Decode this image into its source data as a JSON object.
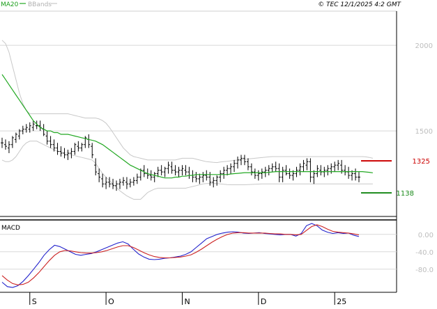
{
  "chart_data": [
    {
      "type": "line",
      "panel": "price",
      "legend": {
        "ma_label": "MA20",
        "bb_label": "BBands",
        "ma_color": "#22a822",
        "bb_color": "#c8c8c8"
      },
      "copyright": "© TEC 12/1/2025 4:2 GMT",
      "y_ticks": [
        {
          "value": 2000,
          "label": "2000"
        },
        {
          "value": 1500,
          "label": "1500"
        }
      ],
      "ylim": [
        1000,
        2200
      ],
      "x_ticks": [
        "S",
        "O",
        "N",
        "D",
        "25"
      ],
      "x_tick_index": [
        8,
        30,
        52,
        74,
        96
      ],
      "bar_color": "#000000",
      "levels": [
        {
          "label": "1325",
          "value": 1325,
          "color": "#cc0000"
        },
        {
          "label": "1138",
          "value": 1138,
          "color": "#1a8a1a"
        }
      ],
      "ohlc": [
        [
          1430,
          1460,
          1400,
          1430
        ],
        [
          1420,
          1450,
          1390,
          1410
        ],
        [
          1400,
          1440,
          1370,
          1420
        ],
        [
          1420,
          1470,
          1400,
          1460
        ],
        [
          1450,
          1490,
          1430,
          1480
        ],
        [
          1470,
          1510,
          1450,
          1500
        ],
        [
          1500,
          1530,
          1480,
          1510
        ],
        [
          1510,
          1540,
          1490,
          1520
        ],
        [
          1510,
          1550,
          1490,
          1530
        ],
        [
          1520,
          1560,
          1500,
          1540
        ],
        [
          1530,
          1560,
          1510,
          1530
        ],
        [
          1530,
          1560,
          1500,
          1520
        ],
        [
          1510,
          1540,
          1470,
          1480
        ],
        [
          1470,
          1500,
          1420,
          1440
        ],
        [
          1440,
          1470,
          1400,
          1420
        ],
        [
          1420,
          1450,
          1380,
          1400
        ],
        [
          1400,
          1430,
          1360,
          1380
        ],
        [
          1380,
          1410,
          1350,
          1370
        ],
        [
          1370,
          1400,
          1340,
          1360
        ],
        [
          1360,
          1390,
          1330,
          1370
        ],
        [
          1370,
          1400,
          1340,
          1380
        ],
        [
          1380,
          1430,
          1360,
          1420
        ],
        [
          1410,
          1440,
          1380,
          1400
        ],
        [
          1400,
          1430,
          1380,
          1420
        ],
        [
          1420,
          1470,
          1400,
          1460
        ],
        [
          1450,
          1480,
          1400,
          1420
        ],
        [
          1410,
          1430,
          1340,
          1360
        ],
        [
          1300,
          1340,
          1240,
          1260
        ],
        [
          1250,
          1280,
          1200,
          1230
        ],
        [
          1220,
          1250,
          1170,
          1190
        ],
        [
          1190,
          1230,
          1160,
          1200
        ],
        [
          1200,
          1230,
          1170,
          1190
        ],
        [
          1190,
          1220,
          1160,
          1180
        ],
        [
          1180,
          1210,
          1150,
          1190
        ],
        [
          1190,
          1220,
          1160,
          1200
        ],
        [
          1200,
          1230,
          1180,
          1210
        ],
        [
          1200,
          1230,
          1160,
          1190
        ],
        [
          1190,
          1220,
          1170,
          1200
        ],
        [
          1200,
          1230,
          1180,
          1210
        ],
        [
          1210,
          1250,
          1190,
          1230
        ],
        [
          1230,
          1280,
          1210,
          1270
        ],
        [
          1270,
          1300,
          1230,
          1250
        ],
        [
          1250,
          1280,
          1220,
          1240
        ],
        [
          1240,
          1270,
          1210,
          1230
        ],
        [
          1230,
          1260,
          1200,
          1250
        ],
        [
          1250,
          1290,
          1230,
          1270
        ],
        [
          1270,
          1300,
          1240,
          1260
        ],
        [
          1260,
          1290,
          1230,
          1280
        ],
        [
          1280,
          1320,
          1250,
          1300
        ],
        [
          1290,
          1320,
          1250,
          1270
        ],
        [
          1270,
          1300,
          1240,
          1260
        ],
        [
          1260,
          1290,
          1230,
          1270
        ],
        [
          1270,
          1300,
          1240,
          1280
        ],
        [
          1270,
          1300,
          1240,
          1260
        ],
        [
          1260,
          1290,
          1220,
          1240
        ],
        [
          1240,
          1270,
          1200,
          1230
        ],
        [
          1230,
          1260,
          1200,
          1220
        ],
        [
          1220,
          1250,
          1190,
          1230
        ],
        [
          1230,
          1260,
          1200,
          1240
        ],
        [
          1240,
          1270,
          1210,
          1230
        ],
        [
          1230,
          1260,
          1180,
          1200
        ],
        [
          1200,
          1230,
          1170,
          1210
        ],
        [
          1210,
          1240,
          1180,
          1230
        ],
        [
          1230,
          1270,
          1200,
          1250
        ],
        [
          1250,
          1290,
          1220,
          1270
        ],
        [
          1270,
          1300,
          1240,
          1280
        ],
        [
          1280,
          1310,
          1250,
          1290
        ],
        [
          1290,
          1330,
          1260,
          1310
        ],
        [
          1310,
          1350,
          1280,
          1330
        ],
        [
          1330,
          1360,
          1300,
          1340
        ],
        [
          1340,
          1360,
          1300,
          1320
        ],
        [
          1320,
          1340,
          1270,
          1290
        ],
        [
          1290,
          1310,
          1240,
          1260
        ],
        [
          1260,
          1280,
          1220,
          1240
        ],
        [
          1240,
          1270,
          1210,
          1250
        ],
        [
          1250,
          1280,
          1220,
          1260
        ],
        [
          1260,
          1290,
          1230,
          1270
        ],
        [
          1270,
          1300,
          1240,
          1280
        ],
        [
          1280,
          1310,
          1260,
          1290
        ],
        [
          1290,
          1320,
          1260,
          1280
        ],
        [
          1280,
          1310,
          1200,
          1230
        ],
        [
          1230,
          1290,
          1200,
          1270
        ],
        [
          1270,
          1300,
          1240,
          1250
        ],
        [
          1250,
          1280,
          1220,
          1240
        ],
        [
          1240,
          1270,
          1210,
          1250
        ],
        [
          1250,
          1290,
          1230,
          1270
        ],
        [
          1270,
          1310,
          1240,
          1290
        ],
        [
          1290,
          1330,
          1260,
          1310
        ],
        [
          1300,
          1340,
          1270,
          1320
        ],
        [
          1320,
          1340,
          1200,
          1230
        ],
        [
          1230,
          1270,
          1190,
          1250
        ],
        [
          1250,
          1300,
          1230,
          1280
        ],
        [
          1270,
          1300,
          1240,
          1260
        ],
        [
          1260,
          1290,
          1230,
          1270
        ],
        [
          1270,
          1300,
          1240,
          1280
        ],
        [
          1280,
          1310,
          1250,
          1290
        ],
        [
          1290,
          1320,
          1260,
          1300
        ],
        [
          1300,
          1330,
          1270,
          1310
        ],
        [
          1300,
          1330,
          1250,
          1270
        ],
        [
          1270,
          1300,
          1240,
          1260
        ],
        [
          1260,
          1290,
          1220,
          1240
        ],
        [
          1240,
          1270,
          1210,
          1250
        ],
        [
          1250,
          1280,
          1210,
          1230
        ],
        [
          1230,
          1260,
          1200,
          1230
        ]
      ],
      "ma20": [
        1830,
        1800,
        1770,
        1740,
        1710,
        1680,
        1650,
        1620,
        1590,
        1560,
        1540,
        1520,
        1510,
        1500,
        1500,
        1490,
        1490,
        1480,
        1480,
        1480,
        1475,
        1470,
        1465,
        1460,
        1455,
        1450,
        1445,
        1440,
        1430,
        1420,
        1405,
        1390,
        1375,
        1360,
        1345,
        1330,
        1315,
        1300,
        1290,
        1280,
        1270,
        1260,
        1250,
        1245,
        1240,
        1235,
        1230,
        1225,
        1225,
        1225,
        1230,
        1230,
        1235,
        1235,
        1240,
        1240,
        1245,
        1245,
        1245,
        1245,
        1245,
        1245,
        1245,
        1245,
        1245,
        1245,
        1248,
        1250,
        1252,
        1254,
        1256,
        1256,
        1256,
        1256,
        1256,
        1256,
        1256,
        1258,
        1260,
        1262,
        1262,
        1262,
        1262,
        1262,
        1262,
        1262,
        1262,
        1262,
        1262,
        1262,
        1262,
        1262,
        1262,
        1262,
        1262,
        1262,
        1262,
        1262,
        1262,
        1262,
        1262,
        1262,
        1262,
        1262,
        1262,
        1260,
        1258,
        1255
      ],
      "bb_upper": [
        2030,
        2010,
        1960,
        1880,
        1800,
        1720,
        1660,
        1620,
        1600,
        1600,
        1600,
        1600,
        1600,
        1600,
        1600,
        1600,
        1600,
        1600,
        1600,
        1600,
        1595,
        1590,
        1585,
        1580,
        1575,
        1575,
        1575,
        1575,
        1570,
        1560,
        1545,
        1520,
        1490,
        1460,
        1430,
        1400,
        1380,
        1360,
        1350,
        1345,
        1340,
        1335,
        1330,
        1330,
        1330,
        1330,
        1330,
        1330,
        1330,
        1330,
        1330,
        1335,
        1340,
        1340,
        1340,
        1340,
        1335,
        1330,
        1325,
        1320,
        1318,
        1316,
        1315,
        1318,
        1320,
        1322,
        1325,
        1328,
        1330,
        1332,
        1334,
        1336,
        1338,
        1340,
        1342,
        1344,
        1346,
        1348,
        1350,
        1350,
        1350,
        1350,
        1350,
        1350,
        1350,
        1350,
        1350,
        1350,
        1350,
        1350,
        1350,
        1350,
        1350,
        1350,
        1350,
        1350,
        1350,
        1350,
        1350,
        1350,
        1350,
        1350,
        1350,
        1350,
        1350,
        1348,
        1345,
        1340
      ],
      "bb_lower": [
        1330,
        1320,
        1320,
        1330,
        1350,
        1380,
        1410,
        1430,
        1440,
        1440,
        1440,
        1430,
        1420,
        1410,
        1400,
        1390,
        1380,
        1380,
        1370,
        1370,
        1360,
        1355,
        1350,
        1345,
        1340,
        1335,
        1330,
        1310,
        1280,
        1250,
        1230,
        1210,
        1190,
        1170,
        1150,
        1135,
        1120,
        1110,
        1100,
        1100,
        1100,
        1120,
        1140,
        1150,
        1160,
        1165,
        1165,
        1165,
        1165,
        1165,
        1165,
        1165,
        1165,
        1165,
        1170,
        1175,
        1180,
        1185,
        1190,
        1192,
        1192,
        1192,
        1192,
        1190,
        1188,
        1186,
        1185,
        1185,
        1185,
        1185,
        1185,
        1186,
        1187,
        1188,
        1189,
        1190,
        1190,
        1190,
        1190,
        1190,
        1190,
        1190,
        1190,
        1190,
        1190,
        1190,
        1190,
        1190,
        1190,
        1190,
        1190,
        1190,
        1190,
        1190,
        1190,
        1190,
        1190,
        1190,
        1190,
        1190,
        1190,
        1190,
        1190,
        1190,
        1190,
        1190,
        1190,
        1190
      ]
    },
    {
      "type": "line",
      "panel": "macd",
      "title": "MACD",
      "y_ticks": [
        {
          "value": 0,
          "label": "0.00"
        },
        {
          "value": -40,
          "label": "-40.0"
        },
        {
          "value": -80,
          "label": "-80.0"
        }
      ],
      "ylim": [
        -130,
        30
      ],
      "series": [
        {
          "color": "#2222cc",
          "values": [
            -110,
            -120,
            -122,
            -118,
            -108,
            -95,
            -80,
            -65,
            -48,
            -35,
            -25,
            -28,
            -34,
            -40,
            -46,
            -48,
            -46,
            -44,
            -40,
            -35,
            -30,
            -25,
            -20,
            -17,
            -22,
            -34,
            -45,
            -52,
            -57,
            -58,
            -57,
            -55,
            -54,
            -52,
            -50,
            -46,
            -40,
            -30,
            -20,
            -10,
            -5,
            0,
            3,
            5,
            6,
            5,
            3,
            2,
            3,
            4,
            2,
            1,
            0,
            -1,
            0,
            0,
            -4,
            2,
            20,
            25,
            20,
            10,
            5,
            2,
            4,
            2,
            3,
            -2,
            -5
          ]
        },
        {
          "color": "#cc2222",
          "values": [
            -95,
            -105,
            -113,
            -116,
            -115,
            -110,
            -100,
            -88,
            -74,
            -60,
            -48,
            -40,
            -37,
            -38,
            -40,
            -42,
            -43,
            -43,
            -42,
            -40,
            -37,
            -33,
            -29,
            -26,
            -26,
            -30,
            -36,
            -42,
            -47,
            -51,
            -53,
            -54,
            -54,
            -53,
            -52,
            -50,
            -47,
            -41,
            -34,
            -26,
            -18,
            -11,
            -5,
            0,
            3,
            4,
            4,
            3,
            3,
            3,
            3,
            2,
            1,
            1,
            0,
            0,
            -1,
            0,
            9,
            18,
            22,
            18,
            12,
            7,
            5,
            4,
            3,
            1,
            -1
          ]
        }
      ]
    }
  ]
}
